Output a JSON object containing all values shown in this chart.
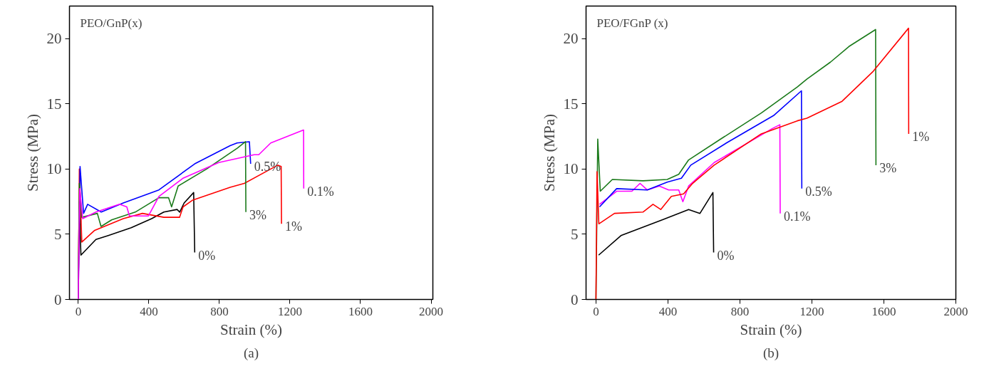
{
  "chart_data": [
    {
      "type": "line",
      "title": "PEO/GnP(x)",
      "xlabel": "Strain (%)",
      "ylabel": "Stress (MPa)",
      "annotations": [
        "(a)"
      ],
      "xlim": [
        -50,
        2010
      ],
      "ylim": [
        0,
        22.5
      ],
      "xticks": [
        0,
        400,
        800,
        1200,
        1600,
        2000
      ],
      "yticks": [
        0,
        5,
        10,
        15,
        20
      ],
      "grid": false,
      "legend": false,
      "marker": "none",
      "line_style": "solid",
      "series": [
        {
          "name": "0%",
          "color": "#000000",
          "x": [
            0,
            5,
            15,
            100,
            170,
            300,
            416,
            485,
            560,
            575,
            600,
            654,
            660
          ],
          "values": [
            0,
            7.5,
            3.4,
            4.6,
            4.9,
            5.5,
            6.2,
            6.7,
            6.9,
            6.7,
            7.4,
            8.2,
            3.6
          ]
        },
        {
          "name": "1%",
          "color": "#ff0000",
          "x": [
            0,
            6,
            20,
            93,
            255,
            364,
            485,
            574,
            594,
            646,
            861,
            941,
            1131,
            1150,
            1152
          ],
          "values": [
            0,
            10,
            4.4,
            5.3,
            6.2,
            6.6,
            6.3,
            6.3,
            7.1,
            7.6,
            8.6,
            8.9,
            10.3,
            10.2,
            5.8
          ]
        },
        {
          "name": "0.5%",
          "color": "#0000ff",
          "x": [
            0,
            10,
            30,
            53,
            130,
            255,
            457,
            660,
            861,
            900,
            970,
            977
          ],
          "values": [
            0,
            10.2,
            6.6,
            7.3,
            6.7,
            7.4,
            8.4,
            10.4,
            11.8,
            12.0,
            12.1,
            10.4
          ]
        },
        {
          "name": "3%",
          "color": "#1a7a1a",
          "x": [
            0,
            6,
            20,
            108,
            129,
            189,
            323,
            457,
            512,
            529,
            566,
            727,
            901,
            948,
            950
          ],
          "values": [
            0,
            8.9,
            6.3,
            6.6,
            5.6,
            6.1,
            6.7,
            7.8,
            7.8,
            7.1,
            8.7,
            10.0,
            11.6,
            12.1,
            6.7
          ]
        },
        {
          "name": "0.1%",
          "color": "#ff00ff",
          "x": [
            0,
            8,
            25,
            100,
            234,
            275,
            290,
            397,
            457,
            594,
            796,
            997,
            1023,
            1091,
            1277,
            1278
          ],
          "values": [
            0,
            8.5,
            6.2,
            6.7,
            7.3,
            7.1,
            6.4,
            6.4,
            7.9,
            9.3,
            10.5,
            11.1,
            11.1,
            12.0,
            13.0,
            8.5
          ]
        }
      ]
    },
    {
      "type": "line",
      "title": "PEO/FGnP (x)",
      "xlabel": "Strain (%)",
      "ylabel": "Stress (MPa)",
      "annotations": [
        "(b)"
      ],
      "xlim": [
        -55,
        2000
      ],
      "ylim": [
        0,
        22.5
      ],
      "xticks": [
        0,
        400,
        800,
        1200,
        1600,
        2000
      ],
      "yticks": [
        0,
        5,
        10,
        15,
        20
      ],
      "grid": false,
      "legend": false,
      "marker": "none",
      "line_style": "solid",
      "series": [
        {
          "name": "0%",
          "color": "#000000",
          "x": [
            15,
            139,
            368,
            515,
            578,
            650,
            654
          ],
          "values": [
            3.4,
            4.9,
            6.1,
            6.9,
            6.6,
            8.2,
            3.6
          ]
        },
        {
          "name": "0.1%",
          "color": "#ff00ff",
          "x": [
            20,
            115,
            200,
            245,
            285,
            352,
            404,
            460,
            483,
            515,
            657,
            979,
            1022,
            1024
          ],
          "values": [
            7.3,
            8.3,
            8.3,
            8.9,
            8.4,
            8.7,
            8.4,
            8.4,
            7.5,
            8.7,
            10.5,
            13.1,
            13.4,
            6.6
          ]
        },
        {
          "name": "0.5%",
          "color": "#0000ff",
          "x": [
            20,
            115,
            285,
            396,
            475,
            527,
            725,
            987,
            1142,
            1144
          ],
          "values": [
            7.1,
            8.5,
            8.4,
            9.0,
            9.3,
            10.3,
            12.0,
            14.1,
            16.0,
            8.5
          ]
        },
        {
          "name": "3%",
          "color": "#1a7a1a",
          "x": [
            0,
            10,
            24,
            91,
            261,
            396,
            460,
            515,
            693,
            919,
            1119,
            1172,
            1303,
            1406,
            1554,
            1556
          ],
          "values": [
            0,
            12.3,
            8.3,
            9.2,
            9.1,
            9.2,
            9.6,
            10.7,
            12.3,
            14.3,
            16.3,
            16.9,
            18.2,
            19.4,
            20.7,
            10.3
          ]
        },
        {
          "name": "1%",
          "color": "#ff0000",
          "x": [
            0,
            6,
            16,
            103,
            261,
            317,
            360,
            419,
            487,
            537,
            657,
            919,
            1119,
            1172,
            1368,
            1541,
            1737,
            1738
          ],
          "values": [
            0,
            9.8,
            5.8,
            6.6,
            6.7,
            7.3,
            6.9,
            7.9,
            8.1,
            8.9,
            10.3,
            12.7,
            13.7,
            13.9,
            15.2,
            17.5,
            20.8,
            12.7
          ]
        }
      ]
    }
  ]
}
